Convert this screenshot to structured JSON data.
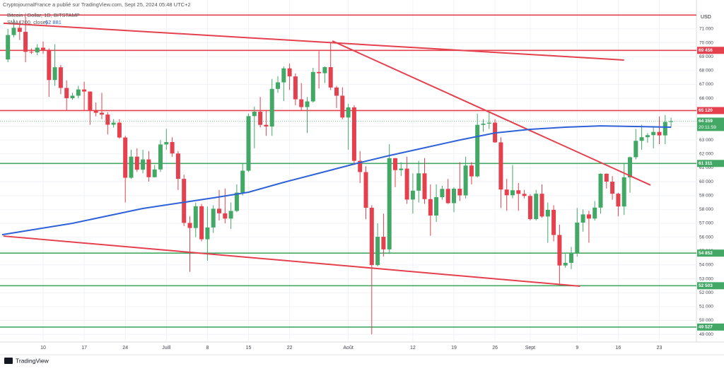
{
  "chart_data": {
    "type": "candlestick",
    "subtitle": "CryptojournalFrance a publié sur TradingView.com, Sept 25, 2024 05:48 UTC+2",
    "title": "Bitcoin / Dollar, 1D, BITSTAMP",
    "currency": "USD",
    "brand": "TradingView",
    "up_color": "#43a866",
    "down_color": "#e5404e",
    "grid": true,
    "ylim": [
      48550,
      72320
    ],
    "yticks": [
      {
        "value": 49000,
        "label": "49 000"
      },
      {
        "value": 50000,
        "label": "50 000"
      },
      {
        "value": 51000,
        "label": "51 000"
      },
      {
        "value": 52000,
        "label": "52 000"
      },
      {
        "value": 53000,
        "label": "53 000"
      },
      {
        "value": 54000,
        "label": "54 000"
      },
      {
        "value": 55000,
        "label": "55 000"
      },
      {
        "value": 56000,
        "label": "56 000"
      },
      {
        "value": 57000,
        "label": "57 000"
      },
      {
        "value": 58000,
        "label": "58 000"
      },
      {
        "value": 59000,
        "label": "59 000"
      },
      {
        "value": 60000,
        "label": "60 000"
      },
      {
        "value": 61000,
        "label": "61 000"
      },
      {
        "value": 62000,
        "label": "62 000"
      },
      {
        "value": 63000,
        "label": "63 000"
      },
      {
        "value": 64000,
        "label": "64 000"
      },
      {
        "value": 65000,
        "label": "65 000"
      },
      {
        "value": 66000,
        "label": "66 000"
      },
      {
        "value": 67000,
        "label": "67 000"
      },
      {
        "value": 68000,
        "label": "68 000"
      },
      {
        "value": 69000,
        "label": "69 000"
      },
      {
        "value": 70000,
        "label": "70 000"
      },
      {
        "value": 71000,
        "label": "71 000"
      }
    ],
    "categories": [
      null,
      null,
      null,
      null,
      null,
      null,
      "10",
      null,
      null,
      null,
      null,
      null,
      null,
      "17",
      null,
      null,
      null,
      null,
      null,
      null,
      "24",
      null,
      null,
      null,
      null,
      null,
      null,
      "Juill",
      null,
      null,
      null,
      null,
      null,
      null,
      "8",
      null,
      null,
      null,
      null,
      null,
      null,
      "15",
      null,
      null,
      null,
      null,
      null,
      null,
      "22",
      null,
      null,
      null,
      null,
      null,
      null,
      null,
      null,
      null,
      "Août",
      null,
      null,
      null,
      null,
      null,
      null,
      null,
      null,
      null,
      null,
      "12",
      null,
      null,
      null,
      null,
      null,
      null,
      "19",
      null,
      null,
      null,
      null,
      null,
      null,
      "26",
      null,
      null,
      null,
      null,
      null,
      "Sept",
      null,
      null,
      null,
      null,
      null,
      null,
      null,
      "9",
      null,
      null,
      null,
      null,
      null,
      null,
      "16",
      null,
      null,
      null,
      null,
      null,
      null,
      "23",
      null,
      null
    ],
    "ohlc": [
      [
        68800,
        71000,
        68600,
        70560
      ],
      [
        70560,
        71700,
        70400,
        71080
      ],
      [
        71080,
        71600,
        70200,
        70790
      ],
      [
        70790,
        71900,
        68600,
        69350
      ],
      [
        69350,
        69600,
        69200,
        69310
      ],
      [
        69310,
        69900,
        69100,
        69650
      ],
      [
        69650,
        70100,
        69200,
        69500
      ],
      [
        69500,
        69600,
        66100,
        67320
      ],
      [
        67320,
        69900,
        66900,
        68240
      ],
      [
        68240,
        68400,
        66300,
        66750
      ],
      [
        66750,
        67300,
        65100,
        66010
      ],
      [
        66010,
        66400,
        65900,
        66190
      ],
      [
        66190,
        66900,
        66000,
        66640
      ],
      [
        66640,
        67200,
        65100,
        66490
      ],
      [
        66490,
        66500,
        64100,
        65150
      ],
      [
        65150,
        65700,
        64700,
        64960
      ],
      [
        64960,
        66400,
        64500,
        64830
      ],
      [
        64830,
        65000,
        63400,
        64100
      ],
      [
        64100,
        64500,
        63900,
        64250
      ],
      [
        64250,
        64500,
        63100,
        63180
      ],
      [
        63180,
        63300,
        58500,
        60280
      ],
      [
        60280,
        62300,
        60200,
        61800
      ],
      [
        61800,
        62400,
        60700,
        60860
      ],
      [
        60860,
        62300,
        60600,
        61600
      ],
      [
        61600,
        62200,
        60000,
        60320
      ],
      [
        60320,
        61200,
        60300,
        60880
      ],
      [
        60880,
        63000,
        60700,
        62680
      ],
      [
        62680,
        63800,
        62300,
        62850
      ],
      [
        62850,
        63200,
        61800,
        62030
      ],
      [
        62030,
        62200,
        59400,
        60200
      ],
      [
        60200,
        60500,
        56800,
        57030
      ],
      [
        57030,
        57500,
        53500,
        56660
      ],
      [
        56660,
        58500,
        56000,
        58230
      ],
      [
        58230,
        58400,
        55700,
        55850
      ],
      [
        55850,
        58200,
        54300,
        56700
      ],
      [
        56700,
        58300,
        56300,
        58050
      ],
      [
        58050,
        59400,
        57200,
        57720
      ],
      [
        57720,
        59500,
        57000,
        57340
      ],
      [
        57340,
        58500,
        56600,
        57890
      ],
      [
        57890,
        59800,
        57800,
        59210
      ],
      [
        59210,
        61300,
        59000,
        60790
      ],
      [
        60790,
        64900,
        60700,
        64720
      ],
      [
        64720,
        65400,
        62400,
        65040
      ],
      [
        65040,
        66100,
        63900,
        64090
      ],
      [
        64090,
        65100,
        63300,
        63970
      ],
      [
        63970,
        67400,
        63300,
        66680
      ],
      [
        66680,
        67600,
        66400,
        67150
      ],
      [
        67150,
        68300,
        65800,
        68160
      ],
      [
        68160,
        68500,
        66600,
        67580
      ],
      [
        67580,
        67800,
        65500,
        65930
      ],
      [
        65930,
        67100,
        65100,
        65370
      ],
      [
        65370,
        66100,
        63500,
        65780
      ],
      [
        65780,
        68200,
        65700,
        67900
      ],
      [
        67900,
        69400,
        66700,
        67810
      ],
      [
        67810,
        68300,
        67100,
        68250
      ],
      [
        68250,
        70000,
        66600,
        66780
      ],
      [
        66780,
        66900,
        65300,
        66190
      ],
      [
        66190,
        66800,
        64500,
        64620
      ],
      [
        64620,
        65600,
        62300,
        65350
      ],
      [
        65350,
        65500,
        61200,
        61500
      ],
      [
        61500,
        62200,
        59900,
        60690
      ],
      [
        60690,
        61100,
        57300,
        58120
      ],
      [
        58120,
        58300,
        49000,
        53990
      ],
      [
        53990,
        57000,
        53900,
        56030
      ],
      [
        56030,
        57700,
        54600,
        55120
      ],
      [
        55120,
        62700,
        54800,
        61690
      ],
      [
        61690,
        61700,
        59600,
        60830
      ],
      [
        60830,
        61400,
        60400,
        60940
      ],
      [
        60940,
        61800,
        58400,
        58710
      ],
      [
        58710,
        60600,
        57700,
        59350
      ],
      [
        59350,
        61500,
        58500,
        60600
      ],
      [
        60600,
        61700,
        58400,
        58740
      ],
      [
        58740,
        59800,
        56100,
        57560
      ],
      [
        57560,
        59800,
        57100,
        58880
      ],
      [
        58880,
        59700,
        58700,
        59480
      ],
      [
        59480,
        60200,
        58400,
        58450
      ],
      [
        58450,
        59600,
        57800,
        59490
      ],
      [
        59490,
        61400,
        58600,
        59010
      ],
      [
        59010,
        61800,
        58800,
        61160
      ],
      [
        61160,
        61400,
        59800,
        60380
      ],
      [
        60380,
        64900,
        60300,
        64090
      ],
      [
        64090,
        64500,
        63600,
        64180
      ],
      [
        64180,
        65000,
        63800,
        64250
      ],
      [
        64250,
        64500,
        62800,
        62830
      ],
      [
        62830,
        63200,
        58100,
        59430
      ],
      [
        59430,
        60200,
        57900,
        59020
      ],
      [
        59020,
        61200,
        58800,
        59380
      ],
      [
        59380,
        59900,
        57900,
        59120
      ],
      [
        59120,
        59400,
        58800,
        58970
      ],
      [
        58970,
        59100,
        57200,
        57300
      ],
      [
        57300,
        59400,
        57200,
        59130
      ],
      [
        59130,
        59800,
        57400,
        57490
      ],
      [
        57490,
        58500,
        55600,
        57970
      ],
      [
        57970,
        58300,
        55700,
        56160
      ],
      [
        56160,
        56900,
        52600,
        53960
      ],
      [
        53960,
        54800,
        53800,
        54150
      ],
      [
        54150,
        55300,
        53700,
        54840
      ],
      [
        54840,
        58100,
        54600,
        57050
      ],
      [
        57050,
        58000,
        56400,
        57640
      ],
      [
        57640,
        57900,
        55600,
        57340
      ],
      [
        57340,
        58600,
        57200,
        58130
      ],
      [
        58130,
        60600,
        57700,
        60570
      ],
      [
        60570,
        60600,
        59500,
        60000
      ],
      [
        60000,
        60400,
        58700,
        59130
      ],
      [
        59130,
        59200,
        57500,
        58210
      ],
      [
        58210,
        61300,
        57600,
        60310
      ],
      [
        60310,
        61800,
        59200,
        61760
      ],
      [
        61760,
        63800,
        61600,
        62940
      ],
      [
        62940,
        64100,
        62300,
        63200
      ],
      [
        63200,
        63500,
        62800,
        63350
      ],
      [
        63350,
        64000,
        62400,
        63580
      ],
      [
        63580,
        64700,
        62700,
        63330
      ],
      [
        63330,
        64800,
        62700,
        64300
      ],
      [
        64300,
        64600,
        63900,
        64359
      ]
    ],
    "sma": {
      "name": "SMA (200, close)",
      "legend_value": "62 881",
      "color": "#2f62d8",
      "x": [
        -1,
        11,
        23,
        35,
        41,
        47,
        53,
        59,
        65,
        71,
        77,
        83,
        89,
        95,
        101,
        107,
        113
      ],
      "values": [
        56180,
        57000,
        58070,
        58830,
        59240,
        59950,
        60610,
        61270,
        61880,
        62440,
        63000,
        63510,
        63770,
        63920,
        64020,
        63970,
        63920
      ]
    },
    "levels": [
      {
        "value": 72000,
        "color": "#e5404e"
      },
      {
        "value": 69456,
        "label": "69 456",
        "color": "#e5404e"
      },
      {
        "value": 65120,
        "label": "65 120",
        "color": "#e5404e"
      },
      {
        "value": 61311,
        "label": "61 311",
        "color": "#43a866"
      },
      {
        "value": 54852,
        "label": "54 852",
        "color": "#43a866"
      },
      {
        "value": 52503,
        "label": "52 503",
        "color": "#43a866"
      },
      {
        "value": 49527,
        "label": "49 527",
        "color": "#43a866"
      }
    ],
    "trendlines": [
      {
        "x": [
          -0.75,
          105
        ],
        "y": [
          71410,
          68760
        ],
        "color": "#e5404e"
      },
      {
        "x": [
          55.3,
          109.5
        ],
        "y": [
          70130,
          59750
        ],
        "color": "#e5404e"
      },
      {
        "x": [
          -0.75,
          97.5
        ],
        "y": [
          56080,
          52470
        ],
        "color": "#e5404e"
      }
    ],
    "last_price": {
      "value": 64359,
      "label": "64 359",
      "countdown": "20:11:59",
      "color": "#43a866"
    }
  }
}
